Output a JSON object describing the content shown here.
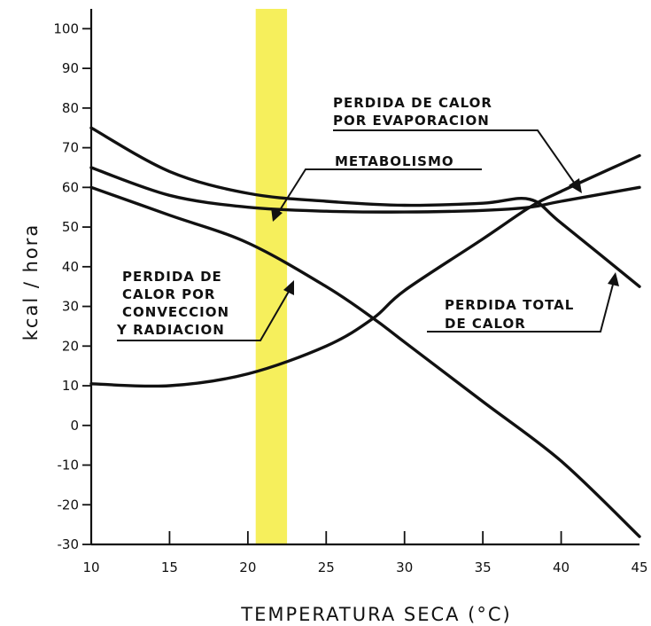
{
  "chart_data": {
    "type": "line",
    "xlabel": "TEMPERATURA SECA (°C)",
    "ylabel": "kcal / hora",
    "xlim": [
      10,
      45
    ],
    "ylim": [
      -30,
      105
    ],
    "x_ticks": [
      10,
      15,
      20,
      25,
      30,
      35,
      40,
      45
    ],
    "y_ticks": [
      -30,
      -20,
      -10,
      0,
      10,
      20,
      30,
      40,
      50,
      60,
      70,
      80,
      90,
      100
    ],
    "highlight_band": {
      "x": [
        20.5,
        22.5
      ],
      "color": "#f6ef5c"
    },
    "series": [
      {
        "name": "PERDIDA TOTAL DE CALOR",
        "x": [
          10,
          15,
          20,
          25,
          30,
          35,
          38,
          40,
          45
        ],
        "y": [
          75,
          64,
          58.5,
          56.5,
          55.5,
          56,
          57,
          51,
          35
        ]
      },
      {
        "name": "METABOLISMO",
        "x": [
          10,
          15,
          20,
          25,
          30,
          35,
          38,
          40,
          45
        ],
        "y": [
          65,
          58,
          55,
          54,
          53.8,
          54.2,
          55,
          56.5,
          60
        ]
      },
      {
        "name": "PERDIDA DE CALOR POR CONVECCION Y RADIACION",
        "x": [
          10,
          15,
          20,
          25,
          28,
          30,
          35,
          40,
          45
        ],
        "y": [
          60,
          53,
          46,
          35,
          27,
          21,
          6,
          -9,
          -28
        ]
      },
      {
        "name": "PERDIDA DE CALOR POR EVAPORACION",
        "x": [
          10,
          15,
          20,
          25,
          28,
          30,
          35,
          38,
          40,
          45
        ],
        "y": [
          10.5,
          10,
          13,
          20,
          27,
          34,
          47,
          55,
          59,
          68
        ]
      }
    ],
    "annotations": {
      "evaporacion": [
        "PERDIDA DE CALOR",
        "POR EVAPORACION"
      ],
      "metabolismo": [
        "METABOLISMO"
      ],
      "conveccion": [
        "PERDIDA DE",
        "CALOR POR",
        "CONVECCION",
        "Y RADIACION"
      ],
      "total": [
        "PERDIDA TOTAL",
        "DE CALOR"
      ]
    }
  }
}
